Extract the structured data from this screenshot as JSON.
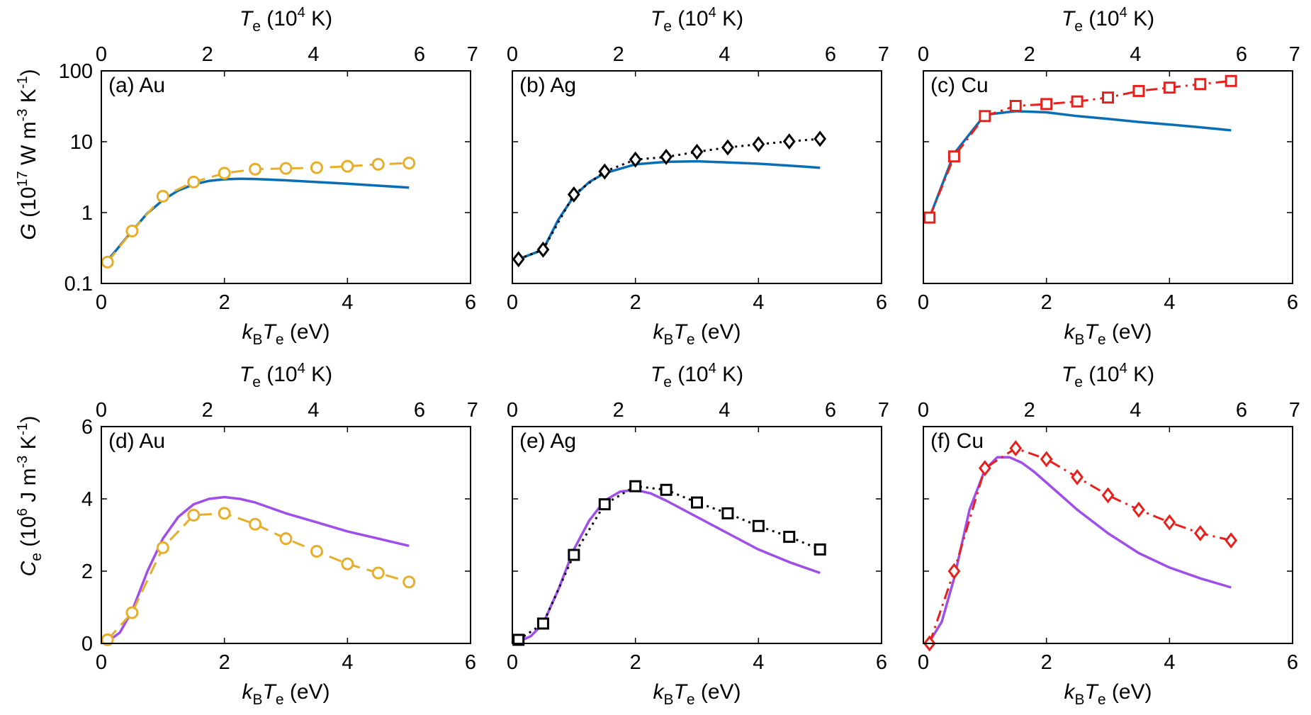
{
  "colors": {
    "g_fit": "#0a6eb4",
    "ce_fit": "#a04ee8",
    "au": "#e6ae2b",
    "ag": "#000000",
    "cu": "#e8201c"
  },
  "axis_text": {
    "top_label_main": "T",
    "top_label_sub": "e",
    "top_label_rest_open": " (10",
    "top_label_sup": "4",
    "top_label_rest_close": " K)",
    "bottom_label_k": "k",
    "bottom_label_k_sub": "B",
    "bottom_label_t": "T",
    "bottom_label_t_sub": "e",
    "bottom_label_rest": " (eV)",
    "g_ylabel_main": "G",
    "g_ylabel_open": " (10",
    "g_ylabel_sup": "17",
    "g_ylabel_mid": " W m",
    "g_ylabel_sup2": "-3",
    "g_ylabel_k": " K",
    "g_ylabel_sup3": "-1",
    "g_ylabel_close": ")",
    "ce_ylabel_main": "C",
    "ce_ylabel_sub": "e",
    "ce_ylabel_open": " (10",
    "ce_ylabel_sup": "6",
    "ce_ylabel_mid": " J m",
    "ce_ylabel_sup2": "-3",
    "ce_ylabel_k": " K",
    "ce_ylabel_sup3": "-1",
    "ce_ylabel_close": ")"
  },
  "chart_data": [
    {
      "id": "a",
      "type": "line",
      "label": "(a) Au",
      "yscale": "log",
      "xlim": [
        0,
        6
      ],
      "ylim": [
        0.1,
        100
      ],
      "x_ticks": [
        "0",
        "2",
        "4",
        "6"
      ],
      "top_ticks": [
        "0",
        "2",
        "4",
        "6",
        "7"
      ],
      "y_ticks": [
        "0.1",
        "1",
        "10",
        "100"
      ],
      "series": [
        {
          "role": "fit",
          "color": "#0a6eb4",
          "x": [
            0.1,
            0.3,
            0.5,
            0.75,
            1.0,
            1.25,
            1.5,
            1.75,
            2.0,
            2.25,
            2.5,
            3.0,
            3.5,
            4.0,
            4.5,
            5.0
          ],
          "y": [
            0.21,
            0.34,
            0.55,
            0.98,
            1.5,
            2.05,
            2.5,
            2.8,
            2.95,
            3.0,
            2.98,
            2.85,
            2.7,
            2.55,
            2.4,
            2.25
          ]
        },
        {
          "role": "marker",
          "color": "#e6ae2b",
          "marker": "circle",
          "dash": "dashed",
          "x": [
            0.1,
            0.5,
            1.0,
            1.5,
            2.0,
            2.5,
            3.0,
            3.5,
            4.0,
            4.5,
            5.0
          ],
          "y": [
            0.2,
            0.55,
            1.7,
            2.7,
            3.6,
            4.1,
            4.2,
            4.3,
            4.5,
            4.8,
            5.0
          ]
        }
      ]
    },
    {
      "id": "b",
      "type": "line",
      "label": "(b) Ag",
      "yscale": "log",
      "xlim": [
        0,
        6
      ],
      "ylim": [
        0.1,
        100
      ],
      "x_ticks": [
        "0",
        "2",
        "4",
        "6"
      ],
      "top_ticks": [
        "0",
        "2",
        "4",
        "6",
        "7"
      ],
      "y_ticks": [],
      "series": [
        {
          "role": "fit",
          "color": "#0a6eb4",
          "x": [
            0.1,
            0.5,
            0.75,
            1.0,
            1.25,
            1.5,
            2.0,
            2.5,
            3.0,
            3.5,
            4.0,
            4.5,
            5.0
          ],
          "y": [
            0.22,
            0.3,
            0.8,
            1.7,
            2.7,
            3.6,
            4.8,
            5.2,
            5.3,
            5.1,
            4.9,
            4.6,
            4.3
          ]
        },
        {
          "role": "marker",
          "color": "#000000",
          "marker": "diamond",
          "dash": "dotted",
          "x": [
            0.1,
            0.5,
            1.0,
            1.5,
            2.0,
            2.5,
            3.0,
            3.5,
            4.0,
            4.5,
            5.0
          ],
          "y": [
            0.22,
            0.3,
            1.8,
            3.8,
            5.6,
            6.1,
            7.2,
            8.3,
            9.2,
            10.1,
            11.0
          ]
        }
      ]
    },
    {
      "id": "c",
      "type": "line",
      "label": "(c) Cu",
      "yscale": "log",
      "xlim": [
        0,
        6
      ],
      "ylim": [
        0.1,
        100
      ],
      "x_ticks": [
        "0",
        "2",
        "4",
        "6"
      ],
      "top_ticks": [
        "0",
        "2",
        "4",
        "6",
        "7"
      ],
      "y_ticks": [],
      "series": [
        {
          "role": "fit",
          "color": "#0a6eb4",
          "x": [
            0.1,
            0.5,
            1.0,
            1.5,
            2.0,
            2.5,
            3.0,
            3.5,
            4.0,
            4.5,
            5.0
          ],
          "y": [
            0.85,
            6.8,
            24,
            27,
            26,
            23,
            21,
            19,
            17.5,
            16,
            14.5
          ]
        },
        {
          "role": "marker",
          "color": "#e8201c",
          "marker": "square",
          "dash": "dashdot",
          "x": [
            0.1,
            0.5,
            1.0,
            1.5,
            2.0,
            2.5,
            3.0,
            3.5,
            4.0,
            4.5,
            5.0
          ],
          "y": [
            0.85,
            6.2,
            23,
            32,
            34,
            37,
            42,
            52,
            58,
            65,
            72
          ]
        }
      ]
    },
    {
      "id": "d",
      "type": "line",
      "label": "(d) Au",
      "yscale": "linear",
      "xlim": [
        0,
        6
      ],
      "ylim": [
        0,
        6
      ],
      "x_ticks": [
        "0",
        "2",
        "4",
        "6"
      ],
      "top_ticks": [
        "0",
        "2",
        "4",
        "6",
        "7"
      ],
      "y_ticks": [
        "0",
        "2",
        "4",
        "6"
      ],
      "series": [
        {
          "role": "fit",
          "color": "#a04ee8",
          "x": [
            0.1,
            0.3,
            0.5,
            0.75,
            1.0,
            1.25,
            1.5,
            1.75,
            2.0,
            2.25,
            2.5,
            3.0,
            3.5,
            4.0,
            4.5,
            5.0
          ],
          "y": [
            0.05,
            0.3,
            0.9,
            2.0,
            2.9,
            3.5,
            3.85,
            4.0,
            4.05,
            4.0,
            3.9,
            3.6,
            3.35,
            3.1,
            2.9,
            2.7
          ]
        },
        {
          "role": "marker",
          "color": "#e6ae2b",
          "marker": "circle",
          "dash": "dashed",
          "x": [
            0.1,
            0.5,
            1.0,
            1.5,
            2.0,
            2.5,
            3.0,
            3.5,
            4.0,
            4.5,
            5.0
          ],
          "y": [
            0.1,
            0.85,
            2.65,
            3.55,
            3.6,
            3.3,
            2.9,
            2.55,
            2.2,
            1.95,
            1.7
          ]
        }
      ]
    },
    {
      "id": "e",
      "type": "line",
      "label": "(e) Ag",
      "yscale": "linear",
      "xlim": [
        0,
        6
      ],
      "ylim": [
        0,
        6
      ],
      "x_ticks": [
        "0",
        "2",
        "4",
        "6"
      ],
      "top_ticks": [
        "0",
        "2",
        "4",
        "6",
        "7"
      ],
      "y_ticks": [],
      "series": [
        {
          "role": "fit",
          "color": "#a04ee8",
          "x": [
            0.1,
            0.3,
            0.5,
            0.75,
            1.0,
            1.25,
            1.5,
            1.75,
            2.0,
            2.25,
            2.5,
            3.0,
            3.5,
            4.0,
            4.5,
            5.0
          ],
          "y": [
            0.05,
            0.2,
            0.55,
            1.5,
            2.6,
            3.4,
            3.95,
            4.2,
            4.25,
            4.15,
            3.95,
            3.5,
            3.05,
            2.6,
            2.25,
            1.95
          ]
        },
        {
          "role": "marker",
          "color": "#000000",
          "marker": "square",
          "dash": "dotted",
          "x": [
            0.1,
            0.5,
            1.0,
            1.5,
            2.0,
            2.5,
            3.0,
            3.5,
            4.0,
            4.5,
            5.0
          ],
          "y": [
            0.1,
            0.55,
            2.45,
            3.85,
            4.35,
            4.25,
            3.9,
            3.6,
            3.25,
            2.95,
            2.6
          ]
        }
      ]
    },
    {
      "id": "f",
      "type": "line",
      "label": "(f) Cu",
      "yscale": "linear",
      "xlim": [
        0,
        6
      ],
      "ylim": [
        0,
        6
      ],
      "x_ticks": [
        "0",
        "2",
        "4",
        "6"
      ],
      "top_ticks": [
        "0",
        "2",
        "4",
        "6",
        "7"
      ],
      "y_ticks": [],
      "series": [
        {
          "role": "fit",
          "color": "#a04ee8",
          "x": [
            0.1,
            0.3,
            0.5,
            0.75,
            1.0,
            1.2,
            1.4,
            1.6,
            1.8,
            2.0,
            2.5,
            3.0,
            3.5,
            4.0,
            4.5,
            5.0
          ],
          "y": [
            0.05,
            0.6,
            1.8,
            3.7,
            4.8,
            5.15,
            5.15,
            5.0,
            4.75,
            4.45,
            3.7,
            3.05,
            2.5,
            2.1,
            1.8,
            1.55
          ]
        },
        {
          "role": "marker",
          "color": "#e8201c",
          "marker": "diamond",
          "dash": "dashdot",
          "x": [
            0.1,
            0.5,
            1.0,
            1.5,
            2.0,
            2.5,
            3.0,
            3.5,
            4.0,
            4.5,
            5.0
          ],
          "y": [
            0.0,
            2.0,
            4.85,
            5.4,
            5.1,
            4.6,
            4.1,
            3.7,
            3.35,
            3.05,
            2.85
          ]
        }
      ]
    }
  ]
}
